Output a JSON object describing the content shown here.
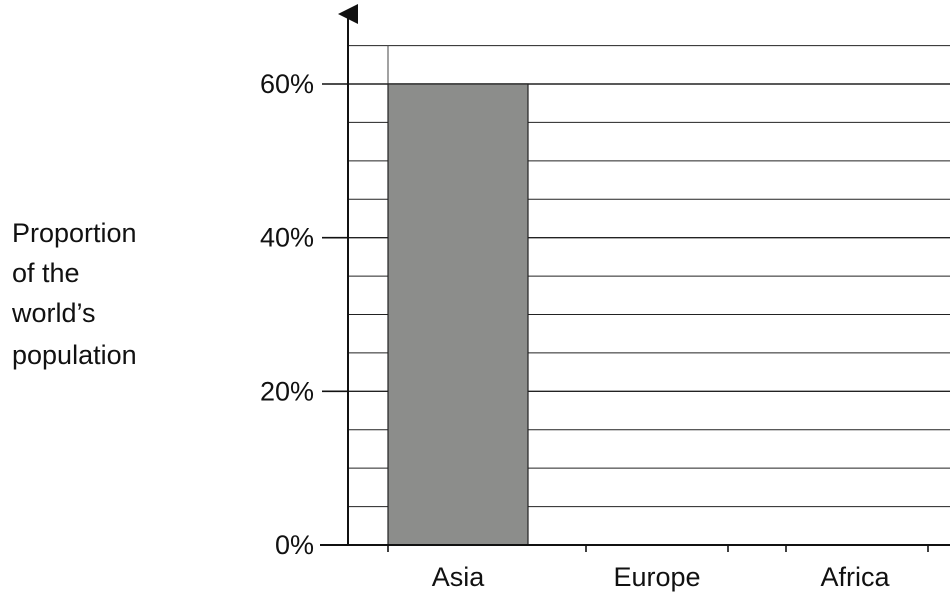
{
  "chart_data": {
    "type": "bar",
    "title": "",
    "xlabel": "",
    "ylabel_lines": [
      "Proportion",
      "of the",
      "world’s",
      "population"
    ],
    "categories": [
      "Asia",
      "Europe",
      "Africa"
    ],
    "values": [
      60,
      null,
      null
    ],
    "y_ticks": [
      "0%",
      "20%",
      "40%",
      "60%"
    ],
    "y_tick_values": [
      0,
      20,
      40,
      60
    ],
    "ylim": [
      0,
      65
    ],
    "y_minor_step": 5,
    "grid": true,
    "bar_color": "#8c8d8b"
  }
}
